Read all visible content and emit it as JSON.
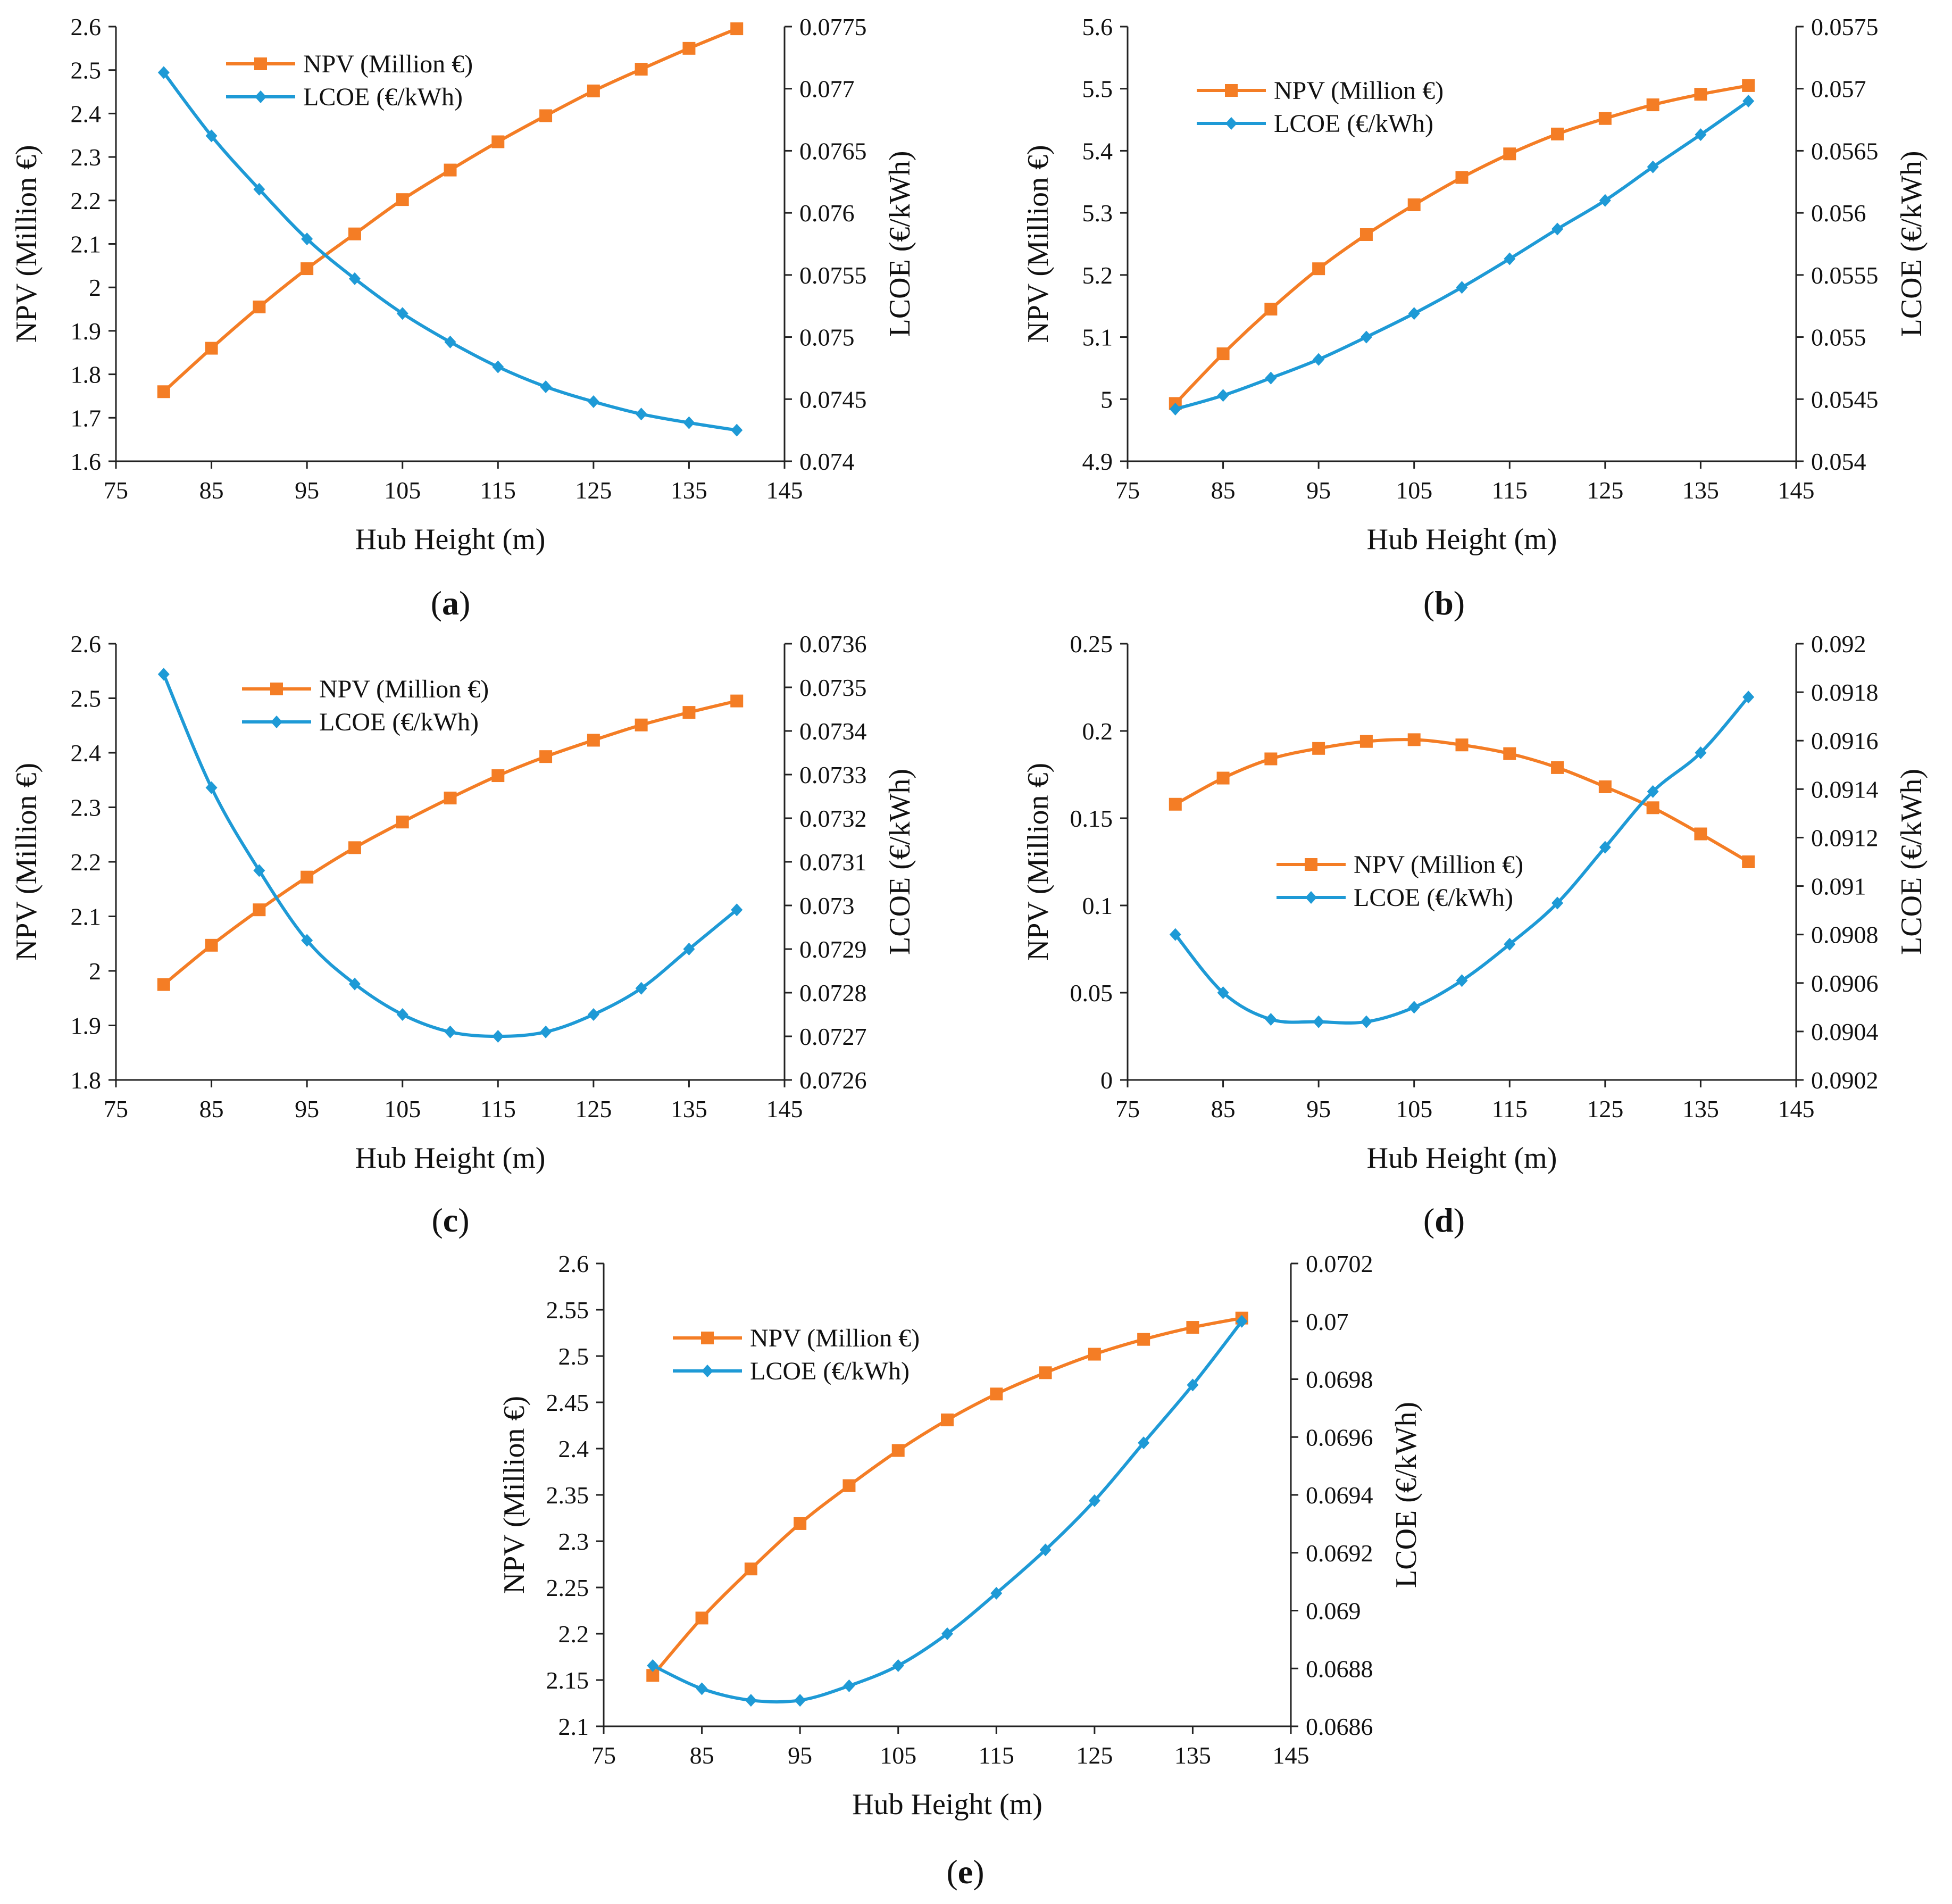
{
  "figure": {
    "colors": {
      "npv": "#F47D25",
      "lcoe": "#1E9AD6",
      "axis": "#222222",
      "background": "#ffffff"
    }
  },
  "chart_data": [
    {
      "panel": "a",
      "type": "line",
      "x": [
        80,
        85,
        90,
        95,
        100,
        105,
        110,
        115,
        120,
        125,
        130,
        135,
        140
      ],
      "xlabel": "Hub Height (m)",
      "ylabel": "NPV (Million €)",
      "ylabel2": "LCOE (€/kWh)",
      "xlim": [
        75,
        145
      ],
      "xticks": [
        "75",
        "85",
        "95",
        "105",
        "115",
        "125",
        "135",
        "145"
      ],
      "ylim": [
        1.6,
        2.6
      ],
      "yticks": [
        "1.6",
        "1.7",
        "1.8",
        "1.9",
        "2",
        "2.1",
        "2.2",
        "2.3",
        "2.4",
        "2.5",
        "2.6"
      ],
      "ylim2": [
        0.074,
        0.0775
      ],
      "yticks2": [
        "0.074",
        "0.0745",
        "0.075",
        "0.0755",
        "0.076",
        "0.0765",
        "0.077",
        "0.0775"
      ],
      "legend": {
        "position": "top-left",
        "entries": [
          "NPV (Million €)",
          "LCOE (€/kWh)"
        ]
      },
      "series": [
        {
          "name": "NPV (Million €)",
          "axis": "left",
          "marker": "square",
          "values": [
            1.76,
            1.86,
            1.955,
            2.043,
            2.123,
            2.202,
            2.27,
            2.335,
            2.395,
            2.452,
            2.502,
            2.55,
            2.595
          ]
        },
        {
          "name": "LCOE (€/kWh)",
          "axis": "right",
          "marker": "diamond",
          "values": [
            0.07713,
            0.07662,
            0.07619,
            0.07579,
            0.07547,
            0.07519,
            0.07496,
            0.07476,
            0.0746,
            0.07448,
            0.07438,
            0.07431,
            0.07425
          ]
        }
      ]
    },
    {
      "panel": "b",
      "type": "line",
      "x": [
        80,
        85,
        90,
        95,
        100,
        105,
        110,
        115,
        120,
        125,
        130,
        135,
        140
      ],
      "xlabel": "Hub Height (m)",
      "ylabel": "NPV (Million €)",
      "ylabel2": "LCOE (€/kWh)",
      "xlim": [
        75,
        145
      ],
      "xticks": [
        "75",
        "85",
        "95",
        "105",
        "115",
        "125",
        "135",
        "145"
      ],
      "ylim": [
        4.9,
        5.6
      ],
      "yticks": [
        "4.9",
        "5",
        "5.1",
        "5.2",
        "5.3",
        "5.4",
        "5.5",
        "5.6"
      ],
      "ylim2": [
        0.054,
        0.0575
      ],
      "yticks2": [
        "0.054",
        "0.0545",
        "0.055",
        "0.0555",
        "0.056",
        "0.0565",
        "0.057",
        "0.0575"
      ],
      "legend": {
        "position": "top-left",
        "entries": [
          "NPV (Million €)",
          "LCOE (€/kWh)"
        ]
      },
      "series": [
        {
          "name": "NPV (Million €)",
          "axis": "left",
          "marker": "square",
          "values": [
            4.993,
            5.073,
            5.145,
            5.21,
            5.265,
            5.313,
            5.357,
            5.395,
            5.427,
            5.452,
            5.474,
            5.491,
            5.505
          ]
        },
        {
          "name": "LCOE (€/kWh)",
          "axis": "right",
          "marker": "diamond",
          "values": [
            0.05442,
            0.05453,
            0.05467,
            0.05482,
            0.055,
            0.05519,
            0.0554,
            0.05563,
            0.05587,
            0.0561,
            0.05637,
            0.05663,
            0.0569
          ]
        }
      ]
    },
    {
      "panel": "c",
      "type": "line",
      "x": [
        80,
        85,
        90,
        95,
        100,
        105,
        110,
        115,
        120,
        125,
        130,
        135,
        140
      ],
      "xlabel": "Hub Height (m)",
      "ylabel": "NPV (Million €)",
      "ylabel2": "LCOE (€/kWh)",
      "xlim": [
        75,
        145
      ],
      "xticks": [
        "75",
        "85",
        "95",
        "105",
        "115",
        "125",
        "135",
        "145"
      ],
      "ylim": [
        1.8,
        2.6
      ],
      "yticks": [
        "1.8",
        "1.9",
        "2",
        "2.1",
        "2.2",
        "2.3",
        "2.4",
        "2.5",
        "2.6"
      ],
      "ylim2": [
        0.0726,
        0.0736
      ],
      "yticks2": [
        "0.0726",
        "0.0727",
        "0.0728",
        "0.0729",
        "0.073",
        "0.0731",
        "0.0732",
        "0.0733",
        "0.0734",
        "0.0735",
        "0.0736"
      ],
      "legend": {
        "position": "top-center",
        "entries": [
          "NPV (Million €)",
          "LCOE (€/kWh)"
        ]
      },
      "series": [
        {
          "name": "NPV (Million €)",
          "axis": "left",
          "marker": "square",
          "values": [
            1.975,
            2.047,
            2.112,
            2.172,
            2.226,
            2.273,
            2.317,
            2.358,
            2.393,
            2.423,
            2.451,
            2.474,
            2.495
          ]
        },
        {
          "name": "LCOE (€/kWh)",
          "axis": "right",
          "marker": "diamond",
          "values": [
            0.07353,
            0.07327,
            0.07308,
            0.07292,
            0.07282,
            0.07275,
            0.07271,
            0.0727,
            0.07271,
            0.07275,
            0.07281,
            0.0729,
            0.07299
          ]
        }
      ]
    },
    {
      "panel": "d",
      "type": "line",
      "x": [
        80,
        85,
        90,
        95,
        100,
        105,
        110,
        115,
        120,
        125,
        130,
        135,
        140
      ],
      "xlabel": "Hub Height (m)",
      "ylabel": "NPV (Million €)",
      "ylabel2": "LCOE (€/kWh)",
      "xlim": [
        75,
        145
      ],
      "xticks": [
        "75",
        "85",
        "95",
        "105",
        "115",
        "125",
        "135",
        "145"
      ],
      "ylim": [
        0,
        0.25
      ],
      "yticks": [
        "0",
        "0.05",
        "0.1",
        "0.15",
        "0.2",
        "0.25"
      ],
      "ylim2": [
        0.0902,
        0.092
      ],
      "yticks2": [
        "0.0902",
        "0.0904",
        "0.0906",
        "0.0908",
        "0.091",
        "0.0912",
        "0.0914",
        "0.0916",
        "0.0918",
        "0.092"
      ],
      "legend": {
        "position": "center",
        "entries": [
          "NPV (Million €)",
          "LCOE (€/kWh)"
        ]
      },
      "series": [
        {
          "name": "NPV (Million €)",
          "axis": "left",
          "marker": "square",
          "values": [
            0.158,
            0.173,
            0.184,
            0.19,
            0.194,
            0.195,
            0.192,
            0.187,
            0.179,
            0.168,
            0.156,
            0.141,
            0.125
          ]
        },
        {
          "name": "LCOE (€/kWh)",
          "axis": "right",
          "marker": "diamond",
          "values": [
            0.0908,
            0.09056,
            0.09045,
            0.09044,
            0.09044,
            0.0905,
            0.09061,
            0.09076,
            0.09093,
            0.09116,
            0.09139,
            0.09155,
            0.09178
          ]
        }
      ]
    },
    {
      "panel": "e",
      "type": "line",
      "x": [
        80,
        85,
        90,
        95,
        100,
        105,
        110,
        115,
        120,
        125,
        130,
        135,
        140
      ],
      "xlabel": "Hub Height (m)",
      "ylabel": "NPV (Million €)",
      "ylabel2": "LCOE (€/kWh)",
      "xlim": [
        75,
        145
      ],
      "xticks": [
        "75",
        "85",
        "95",
        "105",
        "115",
        "125",
        "135",
        "145"
      ],
      "ylim": [
        2.1,
        2.6
      ],
      "yticks": [
        "2.1",
        "2.15",
        "2.2",
        "2.25",
        "2.3",
        "2.35",
        "2.4",
        "2.45",
        "2.5",
        "2.55",
        "2.6"
      ],
      "ylim2": [
        0.0686,
        0.0702
      ],
      "yticks2": [
        "0.0686",
        "0.0688",
        "0.069",
        "0.0692",
        "0.0694",
        "0.0696",
        "0.0698",
        "0.07",
        "0.0702"
      ],
      "legend": {
        "position": "top-left",
        "entries": [
          "NPV (Million €)",
          "LCOE (€/kWh)"
        ]
      },
      "series": [
        {
          "name": "NPV (Million €)",
          "axis": "left",
          "marker": "square",
          "values": [
            2.155,
            2.217,
            2.27,
            2.319,
            2.36,
            2.398,
            2.431,
            2.459,
            2.482,
            2.502,
            2.518,
            2.531,
            2.541
          ]
        },
        {
          "name": "LCOE (€/kWh)",
          "axis": "right",
          "marker": "diamond",
          "values": [
            0.06881,
            0.06873,
            0.06869,
            0.06869,
            0.06874,
            0.06881,
            0.06892,
            0.06906,
            0.06921,
            0.06938,
            0.06958,
            0.06978,
            0.07
          ]
        }
      ]
    }
  ],
  "panel_labels": [
    {
      "open": "(",
      "letter": "a",
      "close": ")"
    },
    {
      "open": "(",
      "letter": "b",
      "close": ")"
    },
    {
      "open": "(",
      "letter": "c",
      "close": ")"
    },
    {
      "open": "(",
      "letter": "d",
      "close": ")"
    },
    {
      "open": "(",
      "letter": "e",
      "close": ")"
    }
  ]
}
